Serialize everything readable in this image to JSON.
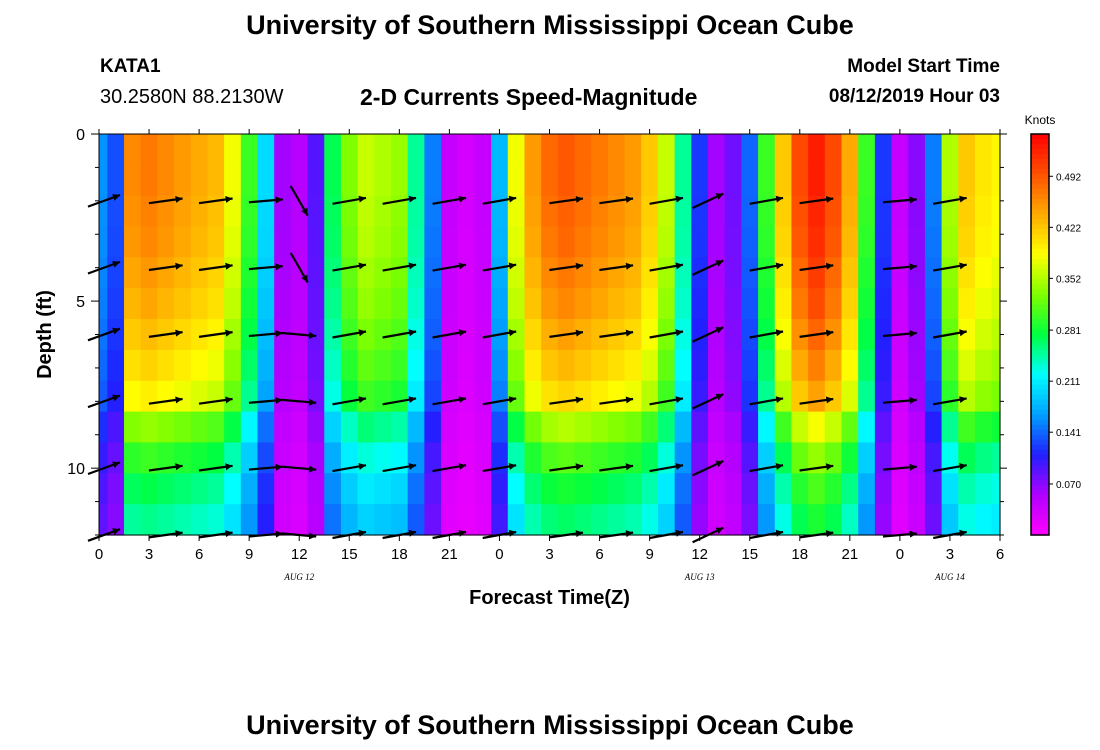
{
  "page": {
    "title_top": "University of Southern Mississippi Ocean Cube",
    "title_bottom": "University of Southern Mississippi Ocean Cube",
    "station_id": "KATA1",
    "station_coords": "30.2580N 88.2130W",
    "subtitle": "2-D Currents Speed-Magnitude",
    "model_start_label": "Model Start Time",
    "model_start_value": "08/12/2019 Hour 03"
  },
  "chart_data": {
    "type": "heatmap",
    "title": "2-D Currents Speed-Magnitude",
    "xlabel": "Forecast Time(Z)",
    "ylabel": "Depth (ft)",
    "x_ticks": [
      "0",
      "3",
      "6",
      "9",
      "12",
      "15",
      "18",
      "21",
      "0",
      "3",
      "6",
      "9",
      "12",
      "15",
      "18",
      "21",
      "0",
      "3",
      "6"
    ],
    "x_range_hours": [
      0,
      54
    ],
    "date_labels": [
      {
        "text": "AUG 12",
        "hour": 12
      },
      {
        "text": "AUG 13",
        "hour": 36
      },
      {
        "text": "AUG 14",
        "hour": 51
      }
    ],
    "y_ticks": [
      0,
      5,
      10
    ],
    "y_range": [
      0,
      12
    ],
    "y_inverted": true,
    "colorbar": {
      "unit": "Knots",
      "min": 0.0,
      "max": 0.55,
      "tick_values": [
        0.492,
        0.422,
        0.352,
        0.281,
        0.211,
        0.141,
        0.07
      ],
      "tick_labels": [
        "0.492",
        "0.422",
        "0.352",
        "0.281",
        "0.211",
        "0.141",
        "0.070"
      ],
      "colors": [
        "#ff00ff",
        "#b000ff",
        "#2020ff",
        "#00a0ff",
        "#00ffff",
        "#00ff40",
        "#80ff00",
        "#ffff00",
        "#ffaa00",
        "#ff5000",
        "#ff0000"
      ]
    },
    "speed_profile": {
      "hours": [
        0,
        1,
        2,
        3,
        4,
        5,
        6,
        7,
        8,
        9,
        10,
        11,
        12,
        13,
        14,
        15,
        16,
        17,
        18,
        19,
        20,
        21,
        22,
        23,
        24,
        25,
        26,
        27,
        28,
        29,
        30,
        31,
        32,
        33,
        34,
        35,
        36,
        37,
        38,
        39,
        40,
        41,
        42,
        43,
        44,
        45,
        46,
        47,
        48,
        49,
        50,
        51,
        52,
        53,
        54
      ],
      "surface": [
        0.16,
        0.13,
        0.46,
        0.47,
        0.46,
        0.45,
        0.44,
        0.43,
        0.38,
        0.3,
        0.2,
        0.06,
        0.05,
        0.09,
        0.27,
        0.33,
        0.36,
        0.35,
        0.34,
        0.25,
        0.15,
        0.04,
        0.03,
        0.04,
        0.18,
        0.38,
        0.45,
        0.48,
        0.49,
        0.48,
        0.47,
        0.46,
        0.45,
        0.42,
        0.36,
        0.25,
        0.12,
        0.06,
        0.08,
        0.14,
        0.3,
        0.42,
        0.5,
        0.53,
        0.5,
        0.44,
        0.3,
        0.12,
        0.04,
        0.07,
        0.15,
        0.35,
        0.42,
        0.4,
        0.39
      ],
      "depth_factor": [
        1.0,
        1.0,
        0.99,
        0.98,
        0.96,
        0.94,
        0.91,
        0.88,
        0.84,
        0.72,
        0.64,
        0.58,
        0.54
      ]
    },
    "vectors": {
      "depths": [
        2,
        4,
        6,
        8,
        10,
        12
      ],
      "hours": [
        0.3,
        4,
        7,
        10,
        12,
        15,
        18,
        21,
        24,
        28,
        31,
        34,
        36.5,
        40,
        43,
        48,
        51
      ],
      "direction_deg": [
        20,
        8,
        8,
        5,
        -5,
        10,
        10,
        10,
        10,
        8,
        8,
        10,
        25,
        10,
        8,
        5,
        10
      ],
      "bow_hour_12_surface_deg": -60
    }
  }
}
